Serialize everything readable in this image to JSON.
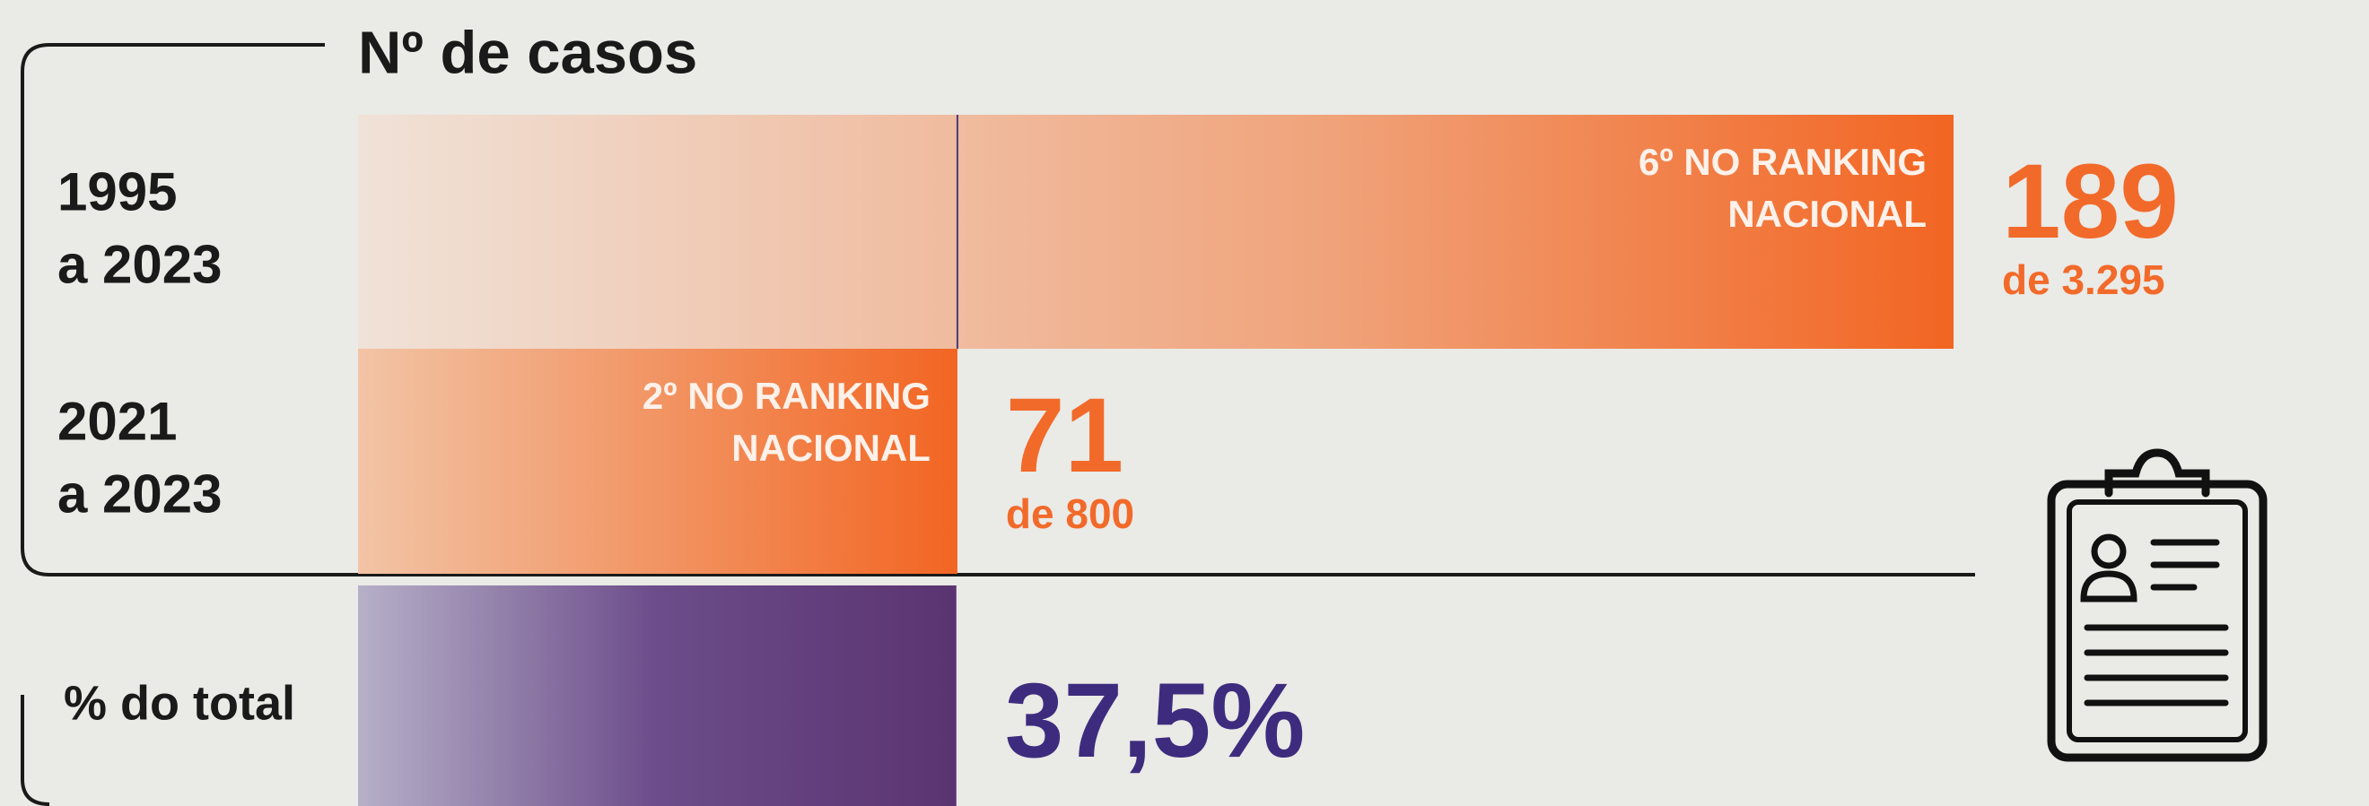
{
  "title": "Nº de casos",
  "rows": [
    {
      "period": [
        "1995",
        "a 2023"
      ],
      "value": 189,
      "total_label": "de 3.295",
      "ranking": [
        "6º NO RANKING",
        "NACIONAL"
      ]
    },
    {
      "period": [
        "2021",
        "a 2023"
      ],
      "value": 71,
      "total_label": "de 800",
      "ranking": [
        "2º NO RANKING",
        "NACIONAL"
      ]
    }
  ],
  "share": {
    "label": "% do total",
    "value": 37.5,
    "value_label": "37,5%"
  }
}
